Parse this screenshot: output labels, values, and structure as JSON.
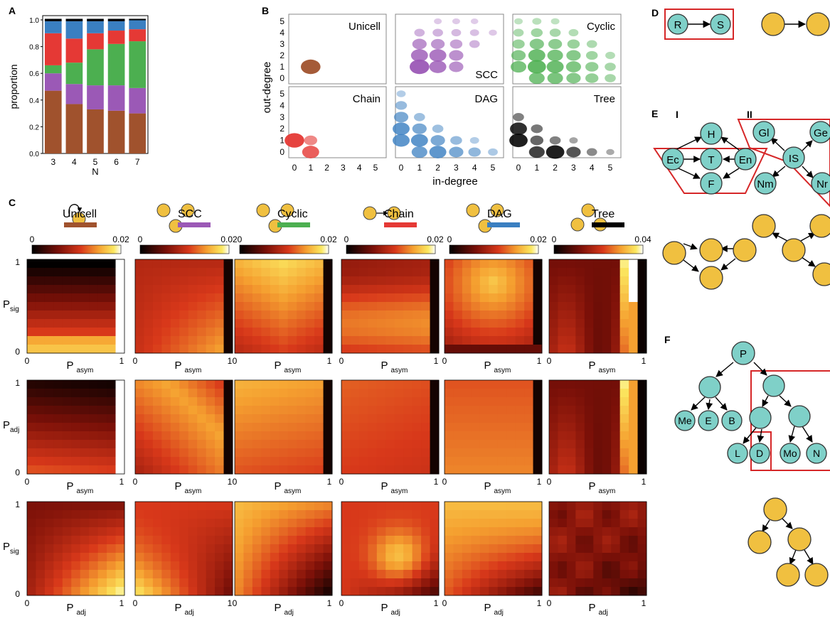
{
  "panel_labels": {
    "A": "A",
    "B": "B",
    "C": "C",
    "D": "D",
    "E": "E",
    "F": "F",
    "E_I": "I",
    "E_II": "II"
  },
  "colors": {
    "Unicell": "#a0522d",
    "SCC": "#9b59b6",
    "Cyclic": "#4caf50",
    "Chain": "#e53935",
    "DAG": "#3a7fc1",
    "Tree": "#000000",
    "node_fill": "#f0c040",
    "node_stroke": "#333333",
    "teal": "#7fd0c8",
    "highlight": "#d62728"
  },
  "chart_data": [
    {
      "type": "bar",
      "panel": "A",
      "stacked": true,
      "categories": [
        "3",
        "4",
        "5",
        "6",
        "7"
      ],
      "xlabel": "N",
      "ylabel": "proportion",
      "ylim": [
        0,
        1
      ],
      "yticks": [
        "0.0",
        "0.2",
        "0.4",
        "0.6",
        "0.8",
        "1.0"
      ],
      "series": [
        {
          "key": "Unicell",
          "values": [
            0.47,
            0.37,
            0.33,
            0.32,
            0.3
          ]
        },
        {
          "key": "SCC",
          "values": [
            0.13,
            0.15,
            0.18,
            0.19,
            0.19
          ]
        },
        {
          "key": "Cyclic",
          "values": [
            0.06,
            0.16,
            0.27,
            0.31,
            0.35
          ]
        },
        {
          "key": "Chain",
          "values": [
            0.24,
            0.18,
            0.12,
            0.1,
            0.09
          ]
        },
        {
          "key": "DAG",
          "values": [
            0.09,
            0.13,
            0.09,
            0.07,
            0.07
          ]
        },
        {
          "key": "Tree",
          "values": [
            0.01,
            0.01,
            0.01,
            0.01,
            0.0
          ]
        }
      ]
    },
    {
      "type": "scatter",
      "panel": "B",
      "xlabel": "in-degree",
      "ylabel": "out-degree",
      "ticks": [
        "0",
        "1",
        "2",
        "3",
        "4",
        "5"
      ],
      "subplots": [
        {
          "title": "Unicell",
          "key": "Unicell",
          "points": [
            [
              1,
              1,
              1.0
            ]
          ]
        },
        {
          "title": "SCC",
          "key": "SCC",
          "points": [
            [
              1,
              1,
              1.0
            ],
            [
              2,
              1,
              0.8
            ],
            [
              3,
              1,
              0.6
            ],
            [
              1,
              2,
              0.8
            ],
            [
              2,
              2,
              0.8
            ],
            [
              3,
              2,
              0.6
            ],
            [
              1,
              3,
              0.6
            ],
            [
              2,
              3,
              0.55
            ],
            [
              3,
              3,
              0.45
            ],
            [
              4,
              3,
              0.3
            ],
            [
              1,
              4,
              0.3
            ],
            [
              2,
              4,
              0.3
            ],
            [
              3,
              4,
              0.25
            ],
            [
              4,
              4,
              0.2
            ],
            [
              5,
              4,
              0.12
            ],
            [
              2,
              5,
              0.1
            ],
            [
              3,
              5,
              0.1
            ],
            [
              4,
              5,
              0.08
            ]
          ]
        },
        {
          "title": "Cyclic",
          "key": "Cyclic",
          "points": [
            [
              0,
              1,
              0.7
            ],
            [
              0,
              2,
              0.6
            ],
            [
              0,
              3,
              0.45
            ],
            [
              0,
              4,
              0.3
            ],
            [
              0,
              5,
              0.15
            ],
            [
              1,
              0,
              0.7
            ],
            [
              1,
              1,
              0.9
            ],
            [
              1,
              2,
              0.8
            ],
            [
              1,
              3,
              0.6
            ],
            [
              1,
              4,
              0.4
            ],
            [
              1,
              5,
              0.2
            ],
            [
              2,
              0,
              0.7
            ],
            [
              2,
              1,
              0.8
            ],
            [
              2,
              2,
              0.7
            ],
            [
              2,
              3,
              0.55
            ],
            [
              2,
              4,
              0.35
            ],
            [
              2,
              5,
              0.15
            ],
            [
              3,
              0,
              0.6
            ],
            [
              3,
              1,
              0.65
            ],
            [
              3,
              2,
              0.6
            ],
            [
              3,
              3,
              0.45
            ],
            [
              3,
              4,
              0.25
            ],
            [
              4,
              0,
              0.5
            ],
            [
              4,
              1,
              0.5
            ],
            [
              4,
              2,
              0.4
            ],
            [
              4,
              3,
              0.3
            ],
            [
              5,
              0,
              0.35
            ],
            [
              5,
              1,
              0.35
            ],
            [
              5,
              2,
              0.25
            ]
          ]
        },
        {
          "title": "Chain",
          "key": "Chain",
          "points": [
            [
              0,
              1,
              1.0
            ],
            [
              1,
              1,
              0.5
            ],
            [
              1,
              0,
              0.8
            ]
          ]
        },
        {
          "title": "DAG",
          "key": "DAG",
          "points": [
            [
              0,
              1,
              0.8
            ],
            [
              0,
              2,
              0.8
            ],
            [
              0,
              3,
              0.6
            ],
            [
              0,
              4,
              0.4
            ],
            [
              0,
              5,
              0.2
            ],
            [
              1,
              0,
              0.7
            ],
            [
              1,
              1,
              0.8
            ],
            [
              1,
              2,
              0.6
            ],
            [
              1,
              3,
              0.35
            ],
            [
              2,
              0,
              0.8
            ],
            [
              2,
              1,
              0.6
            ],
            [
              2,
              2,
              0.35
            ],
            [
              3,
              0,
              0.6
            ],
            [
              3,
              1,
              0.4
            ],
            [
              4,
              0,
              0.45
            ],
            [
              4,
              1,
              0.2
            ],
            [
              5,
              0,
              0.25
            ]
          ]
        },
        {
          "title": "Tree",
          "key": "Tree",
          "points": [
            [
              0,
              1,
              0.9
            ],
            [
              0,
              2,
              0.8
            ],
            [
              0,
              3,
              0.35
            ],
            [
              1,
              0,
              0.7
            ],
            [
              1,
              1,
              0.5
            ],
            [
              1,
              2,
              0.4
            ],
            [
              2,
              0,
              0.9
            ],
            [
              2,
              1,
              0.35
            ],
            [
              3,
              0,
              0.6
            ],
            [
              3,
              1,
              0.15
            ],
            [
              4,
              0,
              0.3
            ],
            [
              5,
              0,
              0.12
            ]
          ]
        }
      ]
    },
    {
      "type": "heatmap",
      "panel": "C",
      "columns": [
        {
          "name": "Unicell",
          "key": "Unicell",
          "cmax": "0.02"
        },
        {
          "name": "SCC",
          "key": "SCC",
          "cmax": "0.02"
        },
        {
          "name": "Cyclic",
          "key": "Cyclic",
          "cmax": "0.02"
        },
        {
          "name": "Chain",
          "key": "Chain",
          "cmax": "0.02"
        },
        {
          "name": "DAG",
          "key": "DAG",
          "cmax": "0.02"
        },
        {
          "name": "Tree",
          "key": "Tree",
          "cmax": "0.04"
        }
      ],
      "cmin": "0",
      "rows": [
        {
          "ylabel": "P",
          "ysub": "sig",
          "xlabel": "P",
          "xsub": "asym"
        },
        {
          "ylabel": "P",
          "ysub": "adj",
          "xlabel": "P",
          "xsub": "asym"
        },
        {
          "ylabel": "P",
          "ysub": "sig",
          "xlabel": "P",
          "xsub": "adj"
        }
      ],
      "ticks": {
        "min": "0",
        "max": "1"
      }
    }
  ],
  "panel_D": {
    "nodes": [
      "R",
      "S"
    ]
  },
  "panel_E": {
    "group_I": [
      "H",
      "Ec",
      "T",
      "En",
      "F"
    ],
    "group_II": [
      "Gl",
      "Ge",
      "IS",
      "Nm",
      "Nr"
    ]
  },
  "panel_F": {
    "root": "P",
    "leaves": [
      "Me",
      "E",
      "B",
      "L",
      "D",
      "Mo",
      "N"
    ]
  }
}
